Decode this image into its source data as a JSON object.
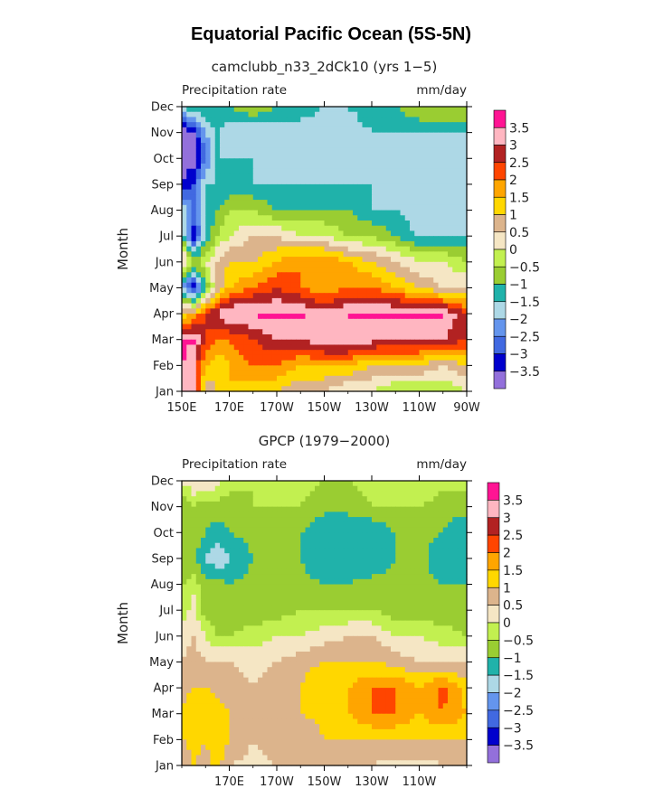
{
  "figure_title": "Equatorial Pacific Ocean (5S-5N)",
  "chart_data": [
    {
      "type": "heatmap",
      "title": "camclubb_n33_2dCk10 (yrs 1−5)",
      "left_label": "Precipitation rate",
      "right_label": "mm/day",
      "ylabel": "Month",
      "xlabel": "",
      "x_tick_labels": [
        "150E",
        "170E",
        "170W",
        "150W",
        "130W",
        "110W",
        "90W"
      ],
      "x_tick_lon": [
        150,
        170,
        190,
        210,
        230,
        250,
        270
      ],
      "xlim_lon": [
        150,
        270
      ],
      "y_tick_labels": [
        "Jan",
        "Feb",
        "Mar",
        "Apr",
        "May",
        "Jun",
        "Jul",
        "Aug",
        "Sep",
        "Oct",
        "Nov",
        "Dec"
      ],
      "ylim_month": [
        1,
        12
      ],
      "grid": false,
      "colorbar_levels": [
        "3.5",
        "3",
        "2.5",
        "2",
        "1.5",
        "1",
        "0.5",
        "0",
        "−0.5",
        "−1",
        "−1.5",
        "−2",
        "−2.5",
        "−3",
        "−3.5"
      ],
      "colorbar_placement": "right",
      "x_lon": [
        150,
        155,
        160,
        165,
        170,
        180,
        190,
        200,
        210,
        220,
        230,
        240,
        250,
        260,
        270
      ],
      "y_month": [
        1,
        2,
        3,
        4,
        5,
        6,
        7,
        8,
        9,
        10,
        11,
        12
      ],
      "values": [
        [
          3.6,
          3.0,
          0.5,
          1.0,
          1.5,
          1.0,
          1.0,
          0.5,
          0.5,
          0.0,
          0.0,
          -0.5,
          -0.5,
          -0.5,
          0.0
        ],
        [
          3.6,
          3.0,
          1.5,
          1.0,
          1.5,
          2.0,
          2.0,
          1.5,
          1.5,
          1.5,
          1.0,
          1.0,
          1.0,
          0.5,
          1.0
        ],
        [
          3.6,
          3.6,
          2.5,
          2.0,
          2.0,
          2.5,
          3.0,
          3.0,
          3.5,
          3.5,
          3.2,
          3.0,
          3.0,
          3.0,
          2.5
        ],
        [
          1.0,
          1.5,
          2.5,
          3.0,
          3.6,
          3.6,
          3.6,
          3.6,
          3.2,
          3.5,
          3.6,
          3.6,
          3.6,
          3.6,
          2.5
        ],
        [
          -2.0,
          -3.5,
          -1.0,
          0.5,
          1.5,
          2.0,
          2.5,
          2.0,
          1.5,
          2.0,
          2.0,
          1.5,
          1.0,
          0.5,
          0.5
        ],
        [
          1.0,
          -0.5,
          0.0,
          0.5,
          1.0,
          1.0,
          1.5,
          2.0,
          2.0,
          1.5,
          1.0,
          0.5,
          0.0,
          0.0,
          -0.5
        ],
        [
          -1.0,
          -3.5,
          -1.5,
          -0.5,
          0.0,
          0.5,
          0.5,
          0.0,
          0.0,
          -0.5,
          -0.5,
          -1.0,
          -1.5,
          -1.5,
          -1.5
        ],
        [
          -1.5,
          -2.5,
          -1.5,
          -1.0,
          -0.5,
          -0.5,
          -1.0,
          -1.0,
          -1.0,
          -1.0,
          -1.5,
          -1.5,
          -2.0,
          -2.0,
          -2.0
        ],
        [
          -3.5,
          -3.0,
          -1.5,
          -1.5,
          -1.5,
          -1.5,
          -1.5,
          -1.5,
          -1.5,
          -1.5,
          -1.5,
          -2.0,
          -2.0,
          -2.0,
          -2.0
        ],
        [
          -3.8,
          -3.8,
          -2.5,
          -1.5,
          -1.5,
          -1.5,
          -2.0,
          -2.0,
          -2.0,
          -2.0,
          -2.0,
          -1.5,
          -2.0,
          -2.0,
          -2.0
        ],
        [
          -3.8,
          -3.5,
          -2.0,
          -1.5,
          -2.0,
          -2.0,
          -2.0,
          -2.0,
          -2.0,
          -2.0,
          -1.5,
          -1.5,
          -1.5,
          -1.5,
          -1.5
        ],
        [
          -1.5,
          -1.0,
          -1.0,
          -1.0,
          -1.0,
          -0.5,
          -1.0,
          -1.0,
          -1.5,
          -1.5,
          -1.0,
          -1.0,
          -0.5,
          -0.5,
          -0.5
        ]
      ]
    },
    {
      "type": "heatmap",
      "title": "GPCP (1979−2000)",
      "left_label": "Precipitation rate",
      "right_label": "mm/day",
      "ylabel": "Month",
      "xlabel": "",
      "x_tick_labels": [
        "170E",
        "170W",
        "150W",
        "130W",
        "110W"
      ],
      "x_tick_lon": [
        170,
        190,
        210,
        230,
        250
      ],
      "xlim_lon": [
        150,
        270
      ],
      "y_tick_labels": [
        "Jan",
        "Feb",
        "Mar",
        "Apr",
        "May",
        "Jun",
        "Jul",
        "Aug",
        "Sep",
        "Oct",
        "Nov",
        "Dec"
      ],
      "ylim_month": [
        1,
        12
      ],
      "grid": false,
      "colorbar_levels": [
        "3.5",
        "3",
        "2.5",
        "2",
        "1.5",
        "1",
        "0.5",
        "0",
        "−0.5",
        "−1",
        "−1.5",
        "−2",
        "−2.5",
        "−3",
        "−3.5"
      ],
      "colorbar_placement": "right",
      "x_lon": [
        150,
        155,
        160,
        165,
        170,
        180,
        190,
        200,
        210,
        220,
        230,
        240,
        250,
        260,
        270
      ],
      "y_month": [
        1,
        2,
        3,
        4,
        5,
        6,
        7,
        8,
        9,
        10,
        11,
        12
      ],
      "values": [
        [
          0.5,
          1.0,
          0.8,
          1.2,
          0.5,
          0.3,
          0.5,
          0.5,
          0.8,
          0.5,
          0.5,
          0.3,
          0.3,
          0.5,
          0.5
        ],
        [
          1.0,
          1.2,
          1.0,
          1.5,
          1.0,
          0.5,
          0.8,
          0.5,
          1.0,
          1.0,
          1.0,
          1.0,
          1.0,
          1.0,
          1.0
        ],
        [
          1.0,
          1.5,
          1.5,
          1.2,
          1.0,
          0.8,
          1.0,
          1.0,
          1.2,
          1.5,
          2.0,
          2.0,
          1.5,
          2.0,
          1.5
        ],
        [
          0.8,
          1.0,
          1.0,
          0.8,
          0.8,
          0.5,
          0.8,
          1.0,
          1.5,
          1.5,
          2.0,
          2.0,
          1.5,
          2.2,
          1.2
        ],
        [
          0.5,
          0.8,
          0.5,
          0.5,
          0.5,
          0.3,
          0.5,
          0.8,
          1.0,
          1.0,
          1.0,
          0.8,
          0.5,
          0.5,
          0.5
        ],
        [
          0.3,
          0.5,
          0.0,
          -0.5,
          -0.5,
          -0.3,
          0.0,
          0.0,
          0.3,
          0.5,
          0.5,
          0.0,
          0.0,
          -0.3,
          -0.5
        ],
        [
          -0.5,
          0.3,
          -0.8,
          -0.8,
          -0.8,
          -0.8,
          -0.8,
          -0.5,
          -0.5,
          -0.5,
          -0.5,
          -0.8,
          -0.8,
          -0.8,
          -0.8
        ],
        [
          -0.5,
          -0.3,
          -0.8,
          -0.8,
          -1.0,
          -0.8,
          -0.8,
          -0.8,
          -1.0,
          -1.0,
          -0.8,
          -0.8,
          -0.8,
          -1.0,
          -1.0
        ],
        [
          -1.0,
          -0.8,
          -1.5,
          -2.0,
          -1.5,
          -1.0,
          -0.8,
          -1.0,
          -1.5,
          -1.5,
          -1.5,
          -1.0,
          -0.8,
          -1.5,
          -1.5
        ],
        [
          -1.0,
          -0.8,
          -1.0,
          -1.2,
          -1.0,
          -0.8,
          -0.8,
          -1.0,
          -1.5,
          -1.5,
          -1.5,
          -1.0,
          -0.8,
          -1.0,
          -1.5
        ],
        [
          -1.0,
          -0.5,
          -0.8,
          -0.8,
          -0.8,
          -0.5,
          -0.5,
          -0.5,
          -0.8,
          -0.8,
          -0.5,
          -0.5,
          -0.5,
          -0.8,
          -0.8
        ],
        [
          0.0,
          0.5,
          0.5,
          0.3,
          -0.3,
          -0.5,
          -0.3,
          -0.3,
          -0.5,
          -0.5,
          -0.3,
          0.0,
          0.0,
          -0.3,
          -0.3
        ]
      ]
    }
  ],
  "colors": {
    "levels": [
      "#9370db",
      "#0000cd",
      "#4169e1",
      "#6495ed",
      "#add8e6",
      "#20b2aa",
      "#9acd32",
      "#c2f050",
      "#f5e6c4",
      "#dcb48c",
      "#ffd700",
      "#ffa500",
      "#ff4500",
      "#b22222",
      "#ffb6c1",
      "#ff1493"
    ],
    "text": "#222222"
  }
}
